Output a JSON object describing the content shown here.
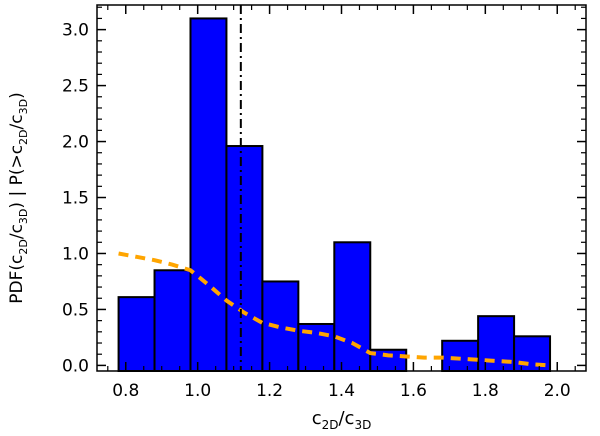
{
  "chart_data": {
    "type": "bar",
    "xlabel": {
      "base": "c",
      "sub1": "2D",
      "mid": "/c",
      "sub2": "3D"
    },
    "ylabel": {
      "parts": [
        {
          "t": "PDF(c",
          "sub": false
        },
        {
          "t": "2D",
          "sub": true
        },
        {
          "t": "/c",
          "sub": false
        },
        {
          "t": "3D",
          "sub": true
        },
        {
          "t": ")  |  P(>c",
          "sub": false
        },
        {
          "t": "2D",
          "sub": true
        },
        {
          "t": "/c",
          "sub": false
        },
        {
          "t": "3D",
          "sub": true
        },
        {
          "t": ")",
          "sub": false
        }
      ]
    },
    "xlim": [
      0.72,
      2.08
    ],
    "ylim": [
      -0.05,
      3.22
    ],
    "xticks": [
      0.8,
      1.0,
      1.2,
      1.4,
      1.6,
      1.8,
      2.0
    ],
    "xtick_labels": [
      "0.8",
      "1.0",
      "1.2",
      "1.4",
      "1.6",
      "1.8",
      "2.0"
    ],
    "yticks": [
      0.0,
      0.5,
      1.0,
      1.5,
      2.0,
      2.5,
      3.0
    ],
    "ytick_labels": [
      "0.0",
      "0.5",
      "1.0",
      "1.5",
      "2.0",
      "2.5",
      "3.0"
    ],
    "histogram": {
      "color": "#0000ff",
      "edge_color": "#000000",
      "bins": [
        {
          "x0": 0.78,
          "x1": 0.88,
          "value": 0.61
        },
        {
          "x0": 0.88,
          "x1": 0.98,
          "value": 0.85
        },
        {
          "x0": 0.98,
          "x1": 1.08,
          "value": 3.1
        },
        {
          "x0": 1.08,
          "x1": 1.18,
          "value": 1.96
        },
        {
          "x0": 1.18,
          "x1": 1.28,
          "value": 0.75
        },
        {
          "x0": 1.28,
          "x1": 1.38,
          "value": 0.37
        },
        {
          "x0": 1.38,
          "x1": 1.48,
          "value": 1.1
        },
        {
          "x0": 1.48,
          "x1": 1.58,
          "value": 0.14
        },
        {
          "x0": 1.58,
          "x1": 1.68,
          "value": 0.0
        },
        {
          "x0": 1.68,
          "x1": 1.78,
          "value": 0.22
        },
        {
          "x0": 1.78,
          "x1": 1.88,
          "value": 0.44
        },
        {
          "x0": 1.88,
          "x1": 1.98,
          "value": 0.26
        }
      ]
    },
    "cumulative_curve": {
      "color": "#ffa500",
      "style": "dashed",
      "x": [
        0.78,
        0.83,
        0.88,
        0.93,
        0.98,
        1.03,
        1.08,
        1.13,
        1.18,
        1.23,
        1.28,
        1.33,
        1.38,
        1.43,
        1.48,
        1.53,
        1.58,
        1.63,
        1.68,
        1.73,
        1.78,
        1.83,
        1.88,
        1.93,
        1.98
      ],
      "y": [
        1.0,
        0.97,
        0.94,
        0.9,
        0.85,
        0.72,
        0.58,
        0.47,
        0.38,
        0.34,
        0.31,
        0.29,
        0.26,
        0.2,
        0.11,
        0.09,
        0.08,
        0.07,
        0.07,
        0.06,
        0.05,
        0.04,
        0.03,
        0.01,
        0.0
      ]
    },
    "vertical_line": {
      "x": 1.12,
      "style": "dash-dot",
      "color": "#000000"
    }
  }
}
